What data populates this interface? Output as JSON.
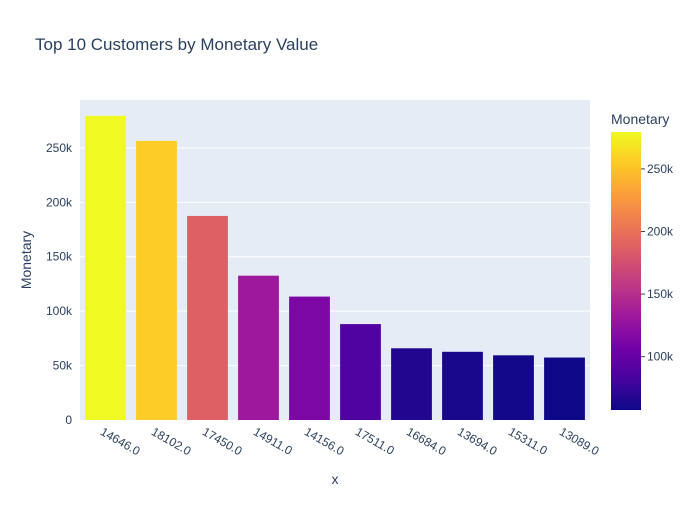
{
  "chart_data": {
    "type": "bar",
    "title": "Top 10 Customers by Monetary Value",
    "xlabel": "x",
    "ylabel": "Monetary",
    "categories": [
      "14646.0",
      "18102.0",
      "17450.0",
      "14911.0",
      "14156.0",
      "17511.0",
      "16684.0",
      "13694.0",
      "15311.0",
      "13089.0"
    ],
    "values": [
      279489,
      256438,
      187482,
      132573,
      113384,
      88125,
      65892,
      62653,
      59419,
      57385
    ],
    "ylim": [
      0,
      294000
    ],
    "yticks": [
      0,
      50000,
      100000,
      150000,
      200000,
      250000
    ],
    "ytick_labels": [
      "0",
      "50k",
      "100k",
      "150k",
      "200k",
      "250k"
    ],
    "grid": true,
    "colorbar": {
      "title": "Monetary",
      "range": [
        57385,
        279489
      ],
      "ticks": [
        100000,
        150000,
        200000,
        250000
      ],
      "tick_labels": [
        "100k",
        "150k",
        "200k",
        "250k"
      ],
      "colorscale": [
        "#0d0887",
        "#46039f",
        "#7201a8",
        "#9c179e",
        "#bd3786",
        "#d8576b",
        "#ed7953",
        "#fb9f3a",
        "#fdca26",
        "#f0f921"
      ]
    },
    "plot_bg": "#e5ecf6"
  }
}
